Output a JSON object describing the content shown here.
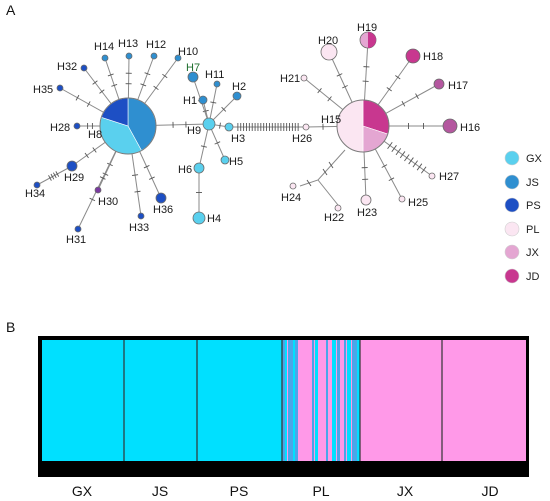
{
  "panel_a_letter": "A",
  "panel_b_letter": "B",
  "network": {
    "haplotypes": [
      "H1",
      "H2",
      "H3",
      "H4",
      "H5",
      "H6",
      "H7",
      "H8",
      "H9",
      "H10",
      "H11",
      "H12",
      "H13",
      "H14",
      "H15",
      "H16",
      "H17",
      "H18",
      "H19",
      "H20",
      "H21",
      "H22",
      "H23",
      "H24",
      "H25",
      "H26",
      "H27",
      "H28",
      "H29",
      "H30",
      "H31",
      "H32",
      "H33",
      "H34",
      "H35",
      "H36"
    ]
  },
  "legend": [
    {
      "label": "GX",
      "color": "#5ad0ee"
    },
    {
      "label": "JS",
      "color": "#2f8fd0"
    },
    {
      "label": "PS",
      "color": "#1d4fc4"
    },
    {
      "label": "PL",
      "color": "#fbe6f2"
    },
    {
      "label": "JX",
      "color": "#e4a6d2"
    },
    {
      "label": "JD",
      "color": "#c8378f"
    }
  ],
  "structure": {
    "populations": [
      "GX",
      "JS",
      "PS",
      "PL",
      "JX",
      "JD"
    ],
    "colors": {
      "cluster1": "#00e0ff",
      "cluster2": "#ff99e8",
      "mix": "#4aa6e8"
    }
  }
}
